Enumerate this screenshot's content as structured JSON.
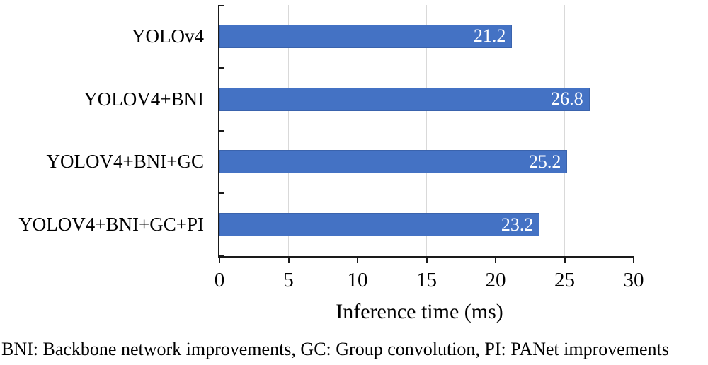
{
  "caption": "BNI: Backbone network improvements, GC: Group convolution, PI: PANet improvements",
  "chart_data": {
    "type": "bar",
    "orientation": "horizontal",
    "title": "",
    "xlabel": "Inference time (ms)",
    "ylabel": "",
    "categories": [
      "YOLOv4",
      "YOLOV4+BNI",
      "YOLOV4+BNI+GC",
      "YOLOV4+BNI+GC+PI"
    ],
    "values": [
      21.2,
      26.8,
      25.2,
      23.2
    ],
    "value_labels": [
      "21.2",
      "26.8",
      "25.2",
      "23.2"
    ],
    "xlim": [
      0,
      30
    ],
    "xticks": [
      0,
      5,
      10,
      15,
      20,
      25,
      30
    ],
    "grid": "vertical",
    "legend": "none",
    "colors": {
      "bar_fill": "#4472C4",
      "bar_border": "#3A63AD",
      "gridline": "#D9D9D9",
      "axis": "#1A1A1A",
      "value_label_text": "#FFFFFF",
      "text": "#000000",
      "background": "#FFFFFF"
    }
  }
}
